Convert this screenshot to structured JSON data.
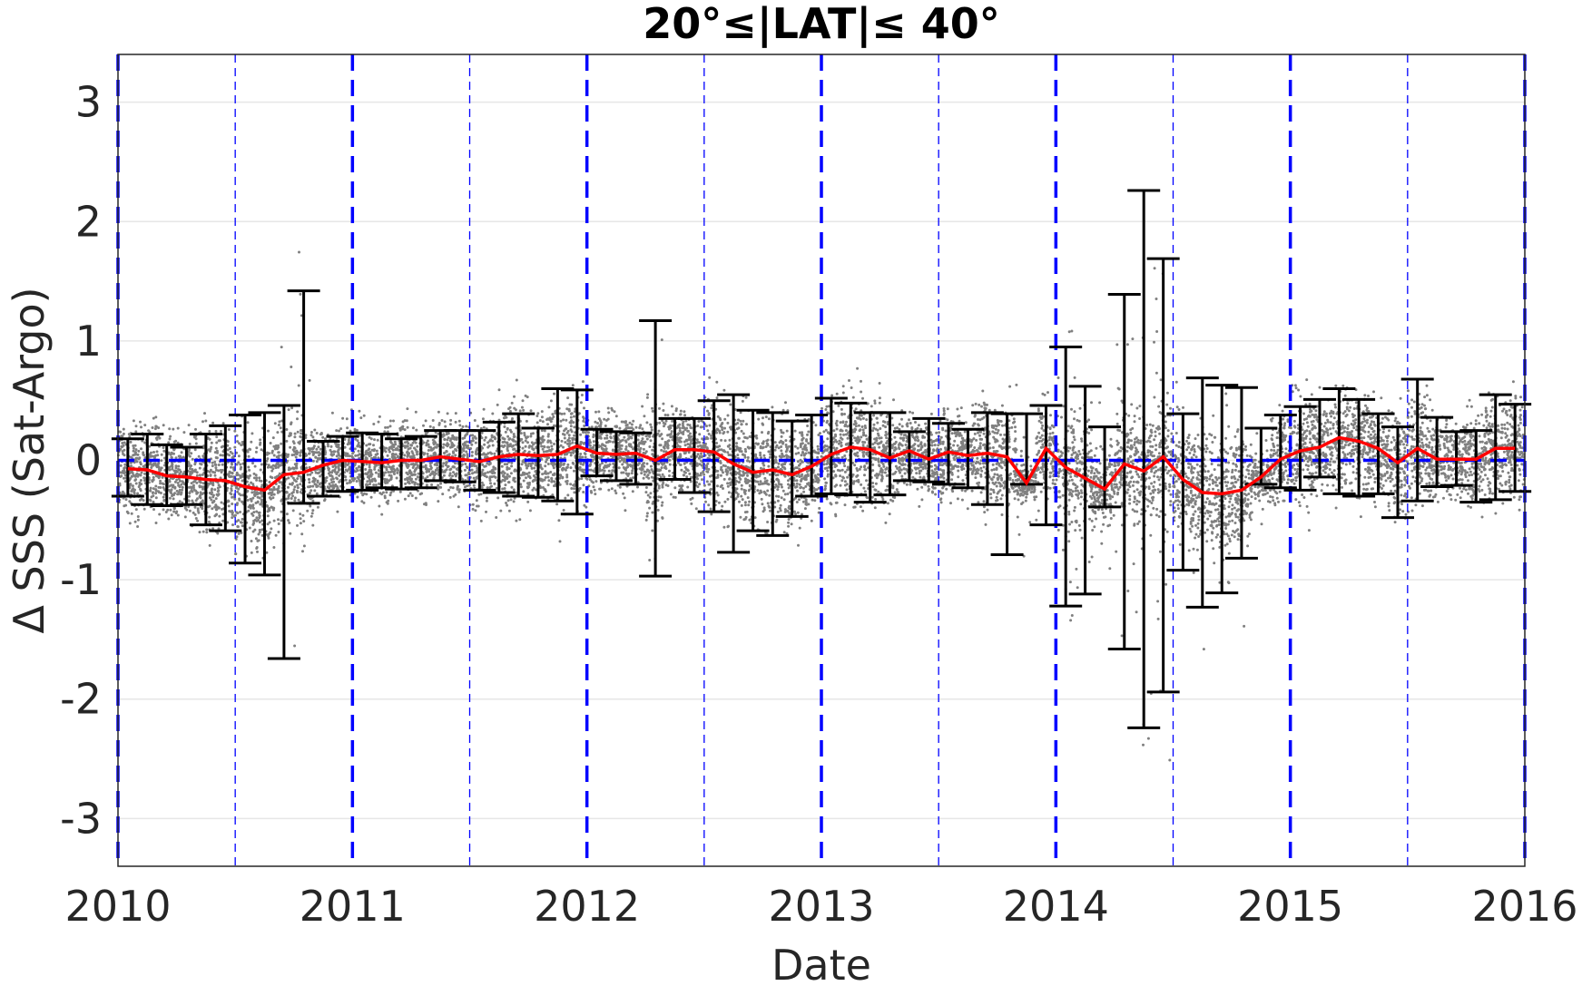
{
  "chart_data": {
    "type": "scatter",
    "title": "20°≤|LAT|≤ 40°",
    "xlabel": "Date",
    "ylabel": "Δ SSS (Sat-Argo)",
    "xlim": [
      2010,
      2016
    ],
    "ylim": [
      -3.4,
      3.4
    ],
    "x_ticks": [
      "2010",
      "2011",
      "2012",
      "2013",
      "2014",
      "2015",
      "2016"
    ],
    "y_ticks": [
      "-3",
      "-2",
      "-1",
      "0",
      "1",
      "2",
      "3"
    ],
    "y_tick_values": [
      -3,
      -2,
      -1,
      0,
      1,
      2,
      3
    ],
    "grid": true,
    "colors": {
      "scatter": "#808080",
      "median_line": "#ff0000",
      "error_bars": "#000000",
      "zero_line": "#0000ff",
      "year_lines": "#0000ff",
      "grid": "#e6e6e6"
    },
    "year_lines": [
      2010,
      2011,
      2012,
      2013,
      2014,
      2015,
      2016
    ],
    "half_year_lines": [
      2010.5,
      2011.5,
      2012.5,
      2013.5,
      2014.5,
      2015.5
    ],
    "reference_line_y": 0,
    "series": [
      {
        "kind": "monthly_median_with_error_bars",
        "x": [
          2010.042,
          2010.125,
          2010.208,
          2010.292,
          2010.375,
          2010.458,
          2010.542,
          2010.625,
          2010.708,
          2010.792,
          2010.875,
          2010.958,
          2011.042,
          2011.125,
          2011.208,
          2011.292,
          2011.375,
          2011.458,
          2011.542,
          2011.625,
          2011.708,
          2011.792,
          2011.875,
          2011.958,
          2012.042,
          2012.125,
          2012.208,
          2012.292,
          2012.375,
          2012.458,
          2012.542,
          2012.625,
          2012.708,
          2012.792,
          2012.875,
          2012.958,
          2013.042,
          2013.125,
          2013.208,
          2013.292,
          2013.375,
          2013.458,
          2013.542,
          2013.625,
          2013.708,
          2013.792,
          2013.875,
          2013.958,
          2014.042,
          2014.125,
          2014.208,
          2014.292,
          2014.375,
          2014.458,
          2014.542,
          2014.625,
          2014.708,
          2014.792,
          2014.875,
          2014.958,
          2015.042,
          2015.125,
          2015.208,
          2015.292,
          2015.375,
          2015.458,
          2015.542,
          2015.625,
          2015.708,
          2015.792,
          2015.875,
          2015.958
        ],
        "median": [
          -0.07,
          -0.08,
          -0.13,
          -0.14,
          -0.16,
          -0.17,
          -0.22,
          -0.25,
          -0.12,
          -0.1,
          -0.04,
          0.0,
          -0.01,
          -0.02,
          0.0,
          0.0,
          0.03,
          0.01,
          -0.01,
          0.03,
          0.05,
          0.04,
          0.05,
          0.12,
          0.06,
          0.05,
          0.06,
          0.0,
          0.09,
          0.09,
          0.07,
          -0.03,
          -0.1,
          -0.08,
          -0.12,
          -0.05,
          0.05,
          0.11,
          0.09,
          0.02,
          0.08,
          0.01,
          0.07,
          0.04,
          0.06,
          0.03,
          -0.19,
          0.1,
          -0.06,
          -0.15,
          -0.24,
          -0.03,
          -0.09,
          0.03,
          -0.16,
          -0.27,
          -0.28,
          -0.25,
          -0.14,
          0.01,
          0.08,
          0.11,
          0.19,
          0.16,
          0.1,
          -0.02,
          0.1,
          0.01,
          0.01,
          0.01,
          0.1,
          0.1
        ],
        "upper": [
          0.18,
          0.22,
          0.13,
          0.11,
          0.22,
          0.29,
          0.38,
          0.4,
          0.46,
          1.42,
          0.16,
          0.2,
          0.23,
          0.22,
          0.18,
          0.2,
          0.25,
          0.25,
          0.25,
          0.32,
          0.39,
          0.27,
          0.6,
          0.59,
          0.26,
          0.24,
          0.23,
          1.17,
          0.35,
          0.35,
          0.5,
          0.55,
          0.42,
          0.4,
          0.33,
          0.38,
          0.52,
          0.48,
          0.4,
          0.4,
          0.24,
          0.35,
          0.31,
          0.26,
          0.4,
          0.39,
          0.39,
          0.46,
          0.95,
          0.62,
          0.28,
          1.39,
          2.26,
          1.69,
          0.39,
          0.69,
          0.63,
          0.61,
          0.27,
          0.38,
          0.45,
          0.51,
          0.6,
          0.51,
          0.39,
          0.28,
          0.68,
          0.36,
          0.24,
          0.25,
          0.55,
          0.47
        ],
        "lower": [
          -0.3,
          -0.37,
          -0.38,
          -0.37,
          -0.54,
          -0.59,
          -0.86,
          -0.96,
          -1.66,
          -0.36,
          -0.3,
          -0.26,
          -0.25,
          -0.23,
          -0.24,
          -0.23,
          -0.17,
          -0.18,
          -0.25,
          -0.27,
          -0.3,
          -0.31,
          -0.34,
          -0.45,
          -0.13,
          -0.17,
          -0.2,
          -0.97,
          -0.16,
          -0.27,
          -0.43,
          -0.77,
          -0.59,
          -0.63,
          -0.47,
          -0.3,
          -0.28,
          -0.29,
          -0.35,
          -0.29,
          -0.17,
          -0.18,
          -0.2,
          -0.23,
          -0.37,
          -0.79,
          -0.2,
          -0.54,
          -1.22,
          -1.12,
          -0.39,
          -1.58,
          -2.24,
          -1.94,
          -0.92,
          -1.23,
          -1.11,
          -0.82,
          -0.2,
          -0.23,
          -0.25,
          -0.14,
          -0.28,
          -0.3,
          -0.28,
          -0.48,
          -0.34,
          -0.22,
          -0.21,
          -0.35,
          -0.33,
          -0.26
        ]
      }
    ]
  }
}
